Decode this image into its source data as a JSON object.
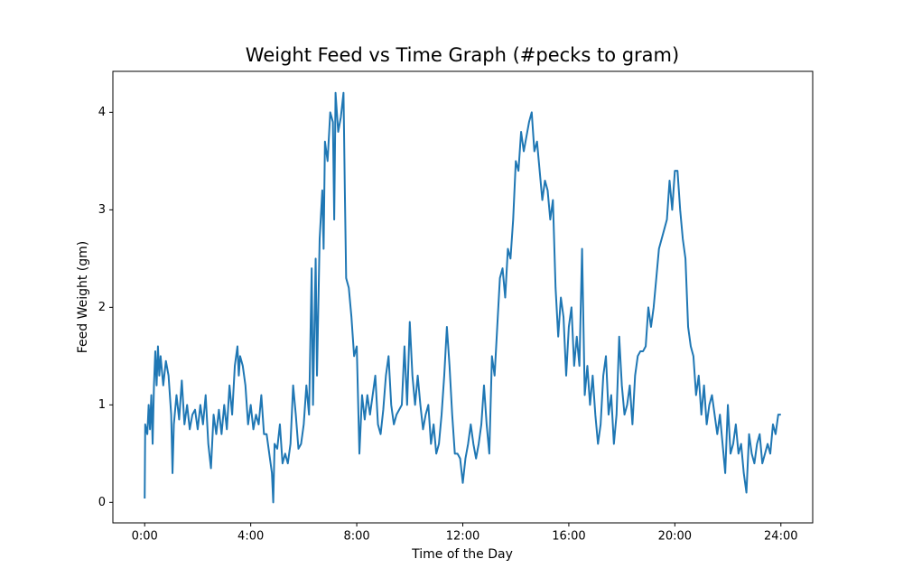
{
  "chart_data": {
    "type": "line",
    "title": "Weight Feed vs Time Graph (#pecks to gram)",
    "x_label": "Time of the Day",
    "y_label": "Feed Weight (gm)",
    "color": "#1f77b4",
    "xlim": [
      -1.2,
      25.2
    ],
    "ylim": [
      -0.21,
      4.42
    ],
    "xticks": [
      {
        "value": 0,
        "label": "0:00"
      },
      {
        "value": 4,
        "label": "4:00"
      },
      {
        "value": 8,
        "label": "8:00"
      },
      {
        "value": 12,
        "label": "12:00"
      },
      {
        "value": 16,
        "label": "16:00"
      },
      {
        "value": 20,
        "label": "20:00"
      },
      {
        "value": 24,
        "label": "24:00"
      }
    ],
    "yticks": [
      0,
      1,
      2,
      3,
      4
    ],
    "grid": false,
    "x": [
      0.0,
      0.02,
      0.1,
      0.15,
      0.2,
      0.25,
      0.3,
      0.35,
      0.4,
      0.45,
      0.5,
      0.55,
      0.6,
      0.7,
      0.8,
      0.9,
      1.0,
      1.05,
      1.1,
      1.2,
      1.3,
      1.4,
      1.5,
      1.6,
      1.7,
      1.8,
      1.9,
      2.0,
      2.1,
      2.2,
      2.3,
      2.4,
      2.5,
      2.6,
      2.7,
      2.8,
      2.9,
      3.0,
      3.1,
      3.2,
      3.3,
      3.4,
      3.5,
      3.55,
      3.6,
      3.7,
      3.8,
      3.9,
      4.0,
      4.1,
      4.2,
      4.3,
      4.4,
      4.5,
      4.6,
      4.7,
      4.8,
      4.85,
      4.9,
      5.0,
      5.1,
      5.2,
      5.3,
      5.4,
      5.5,
      5.6,
      5.7,
      5.8,
      5.9,
      6.0,
      6.1,
      6.2,
      6.3,
      6.35,
      6.45,
      6.5,
      6.6,
      6.7,
      6.75,
      6.8,
      6.9,
      7.0,
      7.1,
      7.15,
      7.2,
      7.3,
      7.4,
      7.5,
      7.55,
      7.6,
      7.7,
      7.8,
      7.9,
      8.0,
      8.1,
      8.2,
      8.3,
      8.4,
      8.5,
      8.6,
      8.7,
      8.8,
      8.9,
      9.0,
      9.1,
      9.2,
      9.3,
      9.4,
      9.5,
      9.7,
      9.8,
      9.9,
      10.0,
      10.1,
      10.2,
      10.3,
      10.4,
      10.5,
      10.6,
      10.7,
      10.8,
      10.9,
      11.0,
      11.1,
      11.2,
      11.3,
      11.4,
      11.5,
      11.6,
      11.7,
      11.8,
      11.9,
      12.0,
      12.1,
      12.2,
      12.3,
      12.4,
      12.5,
      12.6,
      12.7,
      12.8,
      12.9,
      13.0,
      13.1,
      13.2,
      13.3,
      13.4,
      13.5,
      13.6,
      13.7,
      13.8,
      13.9,
      14.0,
      14.1,
      14.2,
      14.3,
      14.5,
      14.6,
      14.7,
      14.8,
      14.9,
      15.0,
      15.1,
      15.2,
      15.3,
      15.4,
      15.5,
      15.6,
      15.7,
      15.8,
      15.9,
      16.0,
      16.1,
      16.2,
      16.3,
      16.4,
      16.5,
      16.6,
      16.7,
      16.8,
      16.9,
      17.0,
      17.1,
      17.2,
      17.3,
      17.4,
      17.5,
      17.6,
      17.7,
      17.8,
      17.9,
      18.0,
      18.1,
      18.2,
      18.3,
      18.4,
      18.5,
      18.6,
      18.7,
      18.8,
      18.9,
      19.0,
      19.1,
      19.2,
      19.3,
      19.4,
      19.5,
      19.6,
      19.7,
      19.8,
      19.9,
      20.0,
      20.1,
      20.2,
      20.3,
      20.4,
      20.5,
      20.6,
      20.7,
      20.8,
      20.9,
      21.0,
      21.1,
      21.2,
      21.3,
      21.4,
      21.5,
      21.6,
      21.7,
      21.8,
      21.9,
      22.0,
      22.1,
      22.2,
      22.3,
      22.4,
      22.5,
      22.6,
      22.7,
      22.8,
      22.9,
      23.0,
      23.1,
      23.2,
      23.3,
      23.4,
      23.5,
      23.6,
      23.7,
      23.8,
      23.9,
      24.0
    ],
    "values": [
      0.04,
      0.8,
      0.7,
      1.0,
      0.75,
      1.1,
      0.6,
      1.2,
      1.55,
      1.2,
      1.6,
      1.3,
      1.5,
      1.2,
      1.45,
      1.3,
      0.9,
      0.3,
      0.8,
      1.1,
      0.85,
      1.25,
      0.8,
      1.0,
      0.75,
      0.9,
      0.95,
      0.75,
      1.0,
      0.8,
      1.1,
      0.6,
      0.35,
      0.9,
      0.7,
      0.95,
      0.7,
      1.0,
      0.75,
      1.2,
      0.9,
      1.4,
      1.6,
      1.3,
      1.5,
      1.4,
      1.2,
      0.8,
      1.0,
      0.75,
      0.9,
      0.8,
      1.1,
      0.7,
      0.7,
      0.5,
      0.3,
      0.0,
      0.6,
      0.55,
      0.8,
      0.4,
      0.5,
      0.4,
      0.6,
      1.2,
      0.9,
      0.55,
      0.6,
      0.8,
      1.2,
      0.9,
      2.4,
      1.0,
      2.5,
      1.3,
      2.7,
      3.2,
      2.6,
      3.7,
      3.5,
      4.0,
      3.9,
      2.9,
      4.2,
      3.8,
      3.95,
      4.2,
      3.2,
      2.3,
      2.2,
      1.9,
      1.5,
      1.6,
      0.5,
      1.1,
      0.85,
      1.1,
      0.9,
      1.1,
      1.3,
      0.8,
      0.7,
      0.95,
      1.3,
      1.5,
      1.0,
      0.8,
      0.9,
      1.0,
      1.6,
      1.0,
      1.85,
      1.3,
      1.0,
      1.3,
      1.0,
      0.75,
      0.9,
      1.0,
      0.6,
      0.8,
      0.5,
      0.6,
      0.9,
      1.3,
      1.8,
      1.4,
      0.9,
      0.5,
      0.5,
      0.45,
      0.2,
      0.45,
      0.6,
      0.8,
      0.6,
      0.45,
      0.6,
      0.8,
      1.2,
      0.8,
      0.5,
      1.5,
      1.3,
      1.8,
      2.3,
      2.4,
      2.1,
      2.6,
      2.5,
      2.9,
      3.5,
      3.4,
      3.8,
      3.6,
      3.9,
      4.0,
      3.6,
      3.7,
      3.4,
      3.1,
      3.3,
      3.2,
      2.9,
      3.1,
      2.2,
      1.7,
      2.1,
      1.9,
      1.3,
      1.8,
      2.0,
      1.4,
      1.7,
      1.4,
      2.6,
      1.1,
      1.4,
      1.0,
      1.3,
      0.9,
      0.6,
      0.8,
      1.3,
      1.5,
      0.9,
      1.1,
      0.6,
      0.9,
      1.7,
      1.2,
      0.9,
      1.0,
      1.2,
      0.8,
      1.3,
      1.5,
      1.55,
      1.55,
      1.6,
      2.0,
      1.8,
      2.0,
      2.3,
      2.6,
      2.7,
      2.8,
      2.9,
      3.3,
      3.0,
      3.4,
      3.4,
      3.0,
      2.7,
      2.5,
      1.8,
      1.6,
      1.5,
      1.1,
      1.3,
      0.9,
      1.2,
      0.8,
      1.0,
      1.1,
      0.9,
      0.7,
      0.9,
      0.6,
      0.3,
      1.0,
      0.5,
      0.6,
      0.8,
      0.5,
      0.6,
      0.3,
      0.1,
      0.7,
      0.5,
      0.4,
      0.6,
      0.7,
      0.4,
      0.5,
      0.6,
      0.5,
      0.8,
      0.7,
      0.9,
      0.9
    ]
  }
}
